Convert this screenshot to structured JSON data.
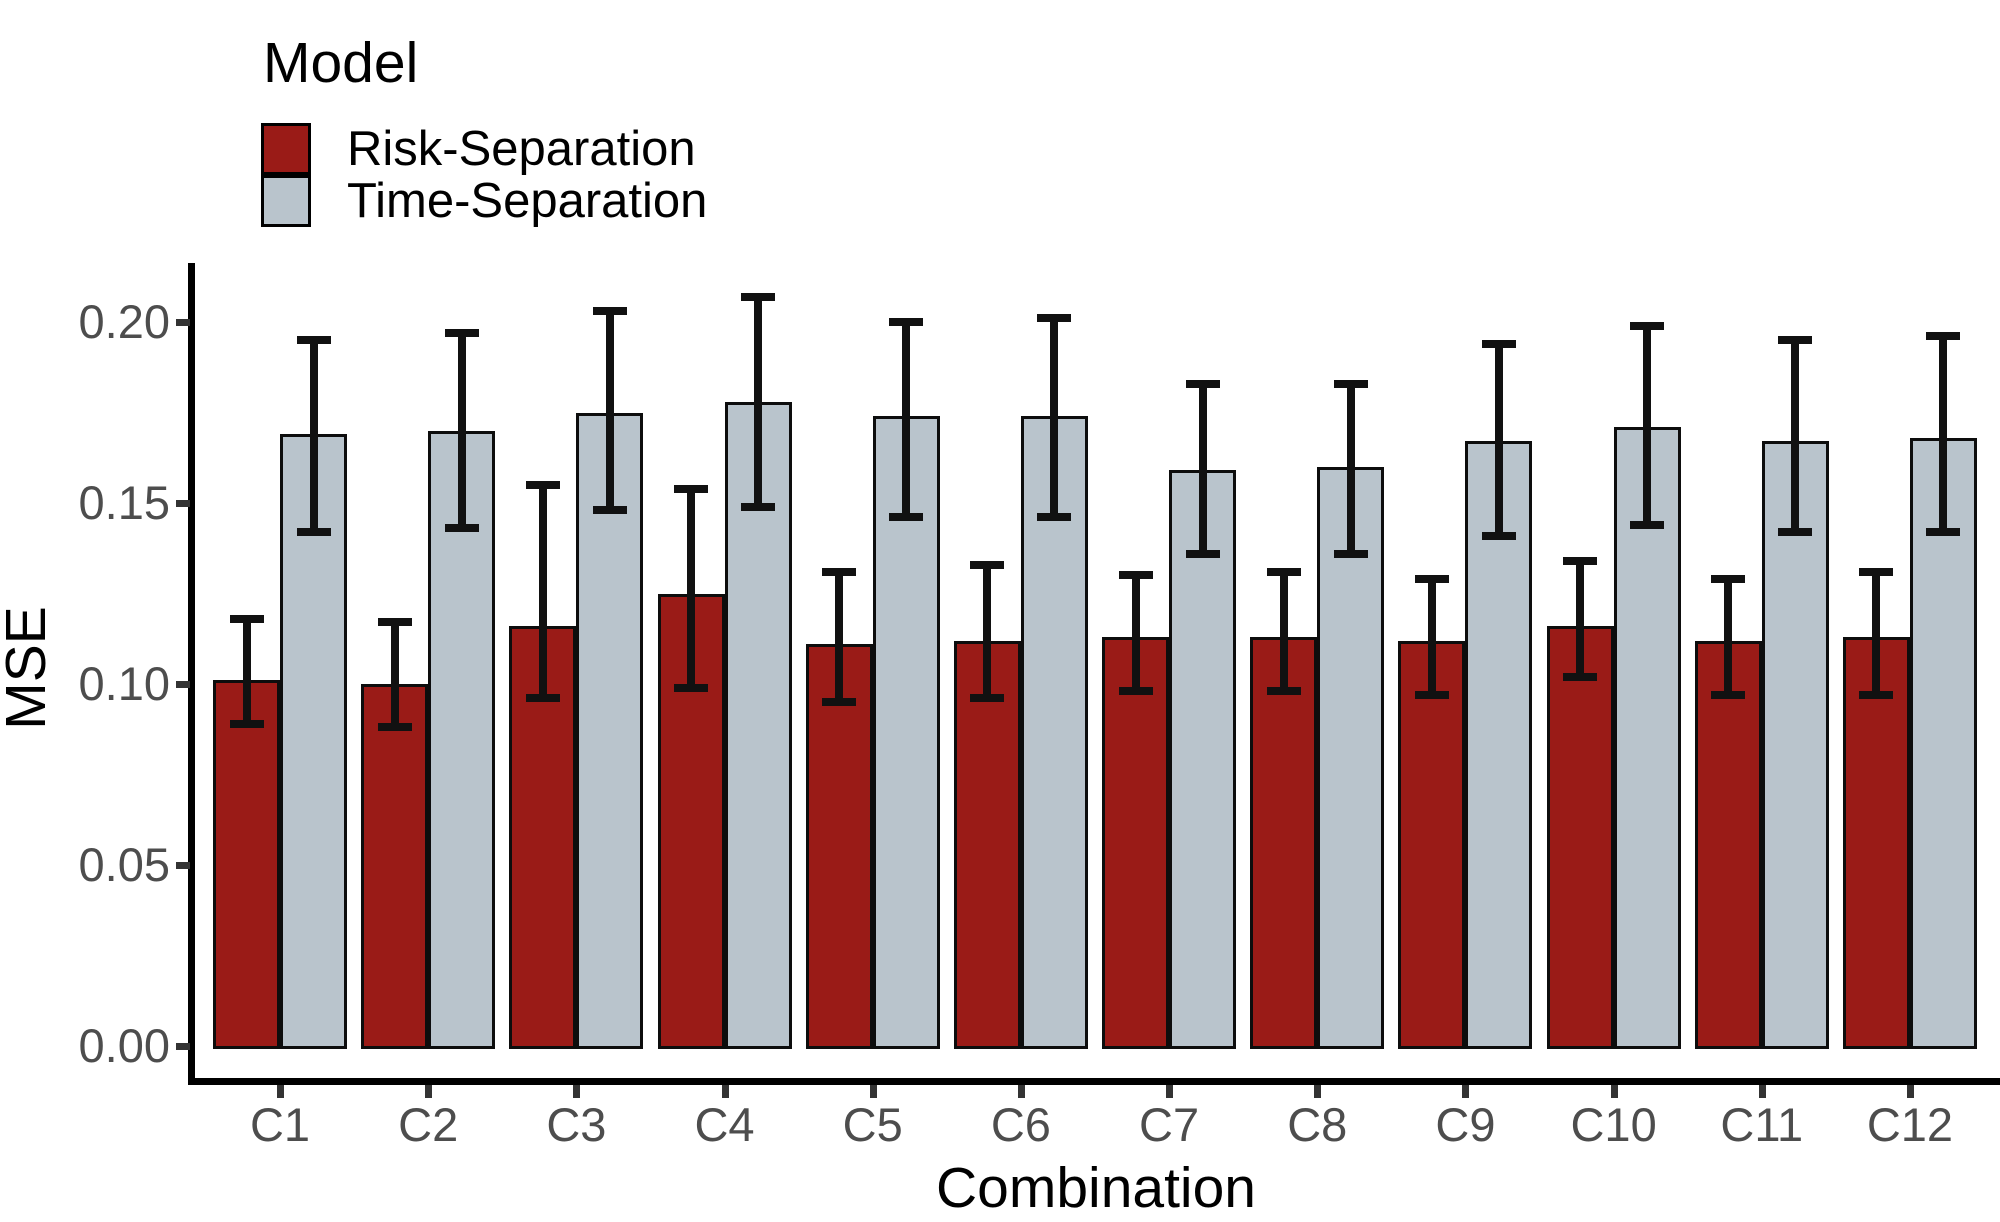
{
  "figure": {
    "background": "#ffffff",
    "legend": {
      "title": "Model",
      "entries": [
        {
          "label": "Risk-Separation",
          "color": "#9A1B17"
        },
        {
          "label": "Time-Separation",
          "color": "#B9C4CC"
        }
      ]
    },
    "axes": {
      "x_title": "Combination",
      "y_title": "MSE",
      "y_tick_labels": [
        "0.00",
        "0.05",
        "0.10",
        "0.15",
        "0.20"
      ],
      "tick_label_color": "#4d4d4d",
      "axis_color": "#000000"
    }
  },
  "chart_data": {
    "type": "bar",
    "title": "",
    "xlabel": "Combination",
    "ylabel": "MSE",
    "ylim": [
      0,
      0.216
    ],
    "yticks": [
      0.0,
      0.05,
      0.1,
      0.15,
      0.2
    ],
    "grid": false,
    "legend_position": "top-left-inside",
    "error_bars": true,
    "categories": [
      "C1",
      "C2",
      "C3",
      "C4",
      "C5",
      "C6",
      "C7",
      "C8",
      "C9",
      "C10",
      "C11",
      "C12"
    ],
    "series": [
      {
        "name": "Risk-Separation",
        "color": "#9A1B17",
        "values": [
          0.101,
          0.1,
          0.116,
          0.125,
          0.111,
          0.112,
          0.113,
          0.113,
          0.112,
          0.116,
          0.112,
          0.113
        ],
        "error_low": [
          0.089,
          0.088,
          0.096,
          0.099,
          0.095,
          0.096,
          0.098,
          0.098,
          0.097,
          0.102,
          0.097,
          0.097
        ],
        "error_high": [
          0.118,
          0.117,
          0.155,
          0.154,
          0.131,
          0.133,
          0.13,
          0.131,
          0.129,
          0.134,
          0.129,
          0.131
        ]
      },
      {
        "name": "Time-Separation",
        "color": "#B9C4CC",
        "values": [
          0.169,
          0.17,
          0.175,
          0.178,
          0.174,
          0.174,
          0.159,
          0.16,
          0.167,
          0.171,
          0.167,
          0.168
        ],
        "error_low": [
          0.142,
          0.143,
          0.148,
          0.149,
          0.146,
          0.146,
          0.136,
          0.136,
          0.141,
          0.144,
          0.142,
          0.142
        ],
        "error_high": [
          0.195,
          0.197,
          0.203,
          0.207,
          0.2,
          0.201,
          0.183,
          0.183,
          0.194,
          0.199,
          0.195,
          0.196
        ]
      }
    ]
  }
}
